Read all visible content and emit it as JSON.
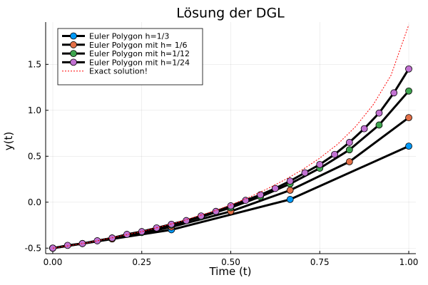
{
  "chart_data": {
    "type": "line",
    "title": "Lösung der DGL",
    "xlabel": "Time (t)",
    "ylabel": "y(t)",
    "xlim": [
      -0.02,
      1.02
    ],
    "ylim": [
      -0.56,
      1.96
    ],
    "x_ticks": [
      0.0,
      0.25,
      0.5,
      0.75,
      1.0
    ],
    "x_tick_labels": [
      "0.00",
      "0.25",
      "0.50",
      "0.75",
      "1.00"
    ],
    "y_ticks": [
      -0.5,
      0.0,
      0.5,
      1.0,
      1.5
    ],
    "y_tick_labels": [
      "-0.5",
      "0.0",
      "0.5",
      "1.0",
      "1.5"
    ],
    "grid": true,
    "legend_position": "top-left",
    "series": [
      {
        "name": "Euler Polygon h=1/3",
        "color": "#009AFA",
        "x": [
          0,
          0.3333,
          0.6667,
          1.0
        ],
        "y": [
          -0.5,
          -0.3,
          0.03,
          0.61
        ]
      },
      {
        "name": "Euler Polygon mit h= 1/6",
        "color": "#E36F47",
        "x": [
          0,
          0.1667,
          0.3333,
          0.5,
          0.6667,
          0.8333,
          1.0
        ],
        "y": [
          -0.5,
          -0.4,
          -0.27,
          -0.1,
          0.13,
          0.44,
          0.92
        ]
      },
      {
        "name": "Euler Polygon mit h=1/12",
        "color": "#3EA44E",
        "x": [
          0,
          0.0833,
          0.1667,
          0.25,
          0.3333,
          0.4167,
          0.5,
          0.5833,
          0.6667,
          0.75,
          0.8333,
          0.9167,
          1.0
        ],
        "y": [
          -0.5,
          -0.45,
          -0.39,
          -0.33,
          -0.25,
          -0.16,
          -0.06,
          0.06,
          0.2,
          0.37,
          0.57,
          0.84,
          1.21
        ]
      },
      {
        "name": "Euler Polygon mit h=1/24",
        "color": "#C271D2",
        "x": [
          0,
          0.0417,
          0.0833,
          0.125,
          0.1667,
          0.2083,
          0.25,
          0.2917,
          0.3333,
          0.375,
          0.4167,
          0.4583,
          0.5,
          0.5417,
          0.5833,
          0.625,
          0.6667,
          0.7083,
          0.75,
          0.7917,
          0.8333,
          0.875,
          0.9167,
          0.9583,
          1.0
        ],
        "y": [
          -0.5,
          -0.47,
          -0.45,
          -0.42,
          -0.39,
          -0.35,
          -0.32,
          -0.28,
          -0.24,
          -0.2,
          -0.15,
          -0.1,
          -0.04,
          0.02,
          0.08,
          0.15,
          0.23,
          0.32,
          0.41,
          0.52,
          0.65,
          0.8,
          0.97,
          1.19,
          1.45
        ]
      },
      {
        "name": "Exact solution!",
        "color": "#FF0000",
        "x": [
          0,
          0.05,
          0.1,
          0.15,
          0.2,
          0.25,
          0.3,
          0.35,
          0.4,
          0.45,
          0.5,
          0.55,
          0.6,
          0.65,
          0.7,
          0.75,
          0.8,
          0.85,
          0.9,
          0.95,
          1.0
        ],
        "y": [
          -0.5,
          -0.47,
          -0.44,
          -0.4,
          -0.36,
          -0.32,
          -0.27,
          -0.22,
          -0.16,
          -0.1,
          -0.03,
          0.05,
          0.14,
          0.24,
          0.35,
          0.48,
          0.63,
          0.82,
          1.06,
          1.38,
          1.93
        ]
      }
    ]
  }
}
